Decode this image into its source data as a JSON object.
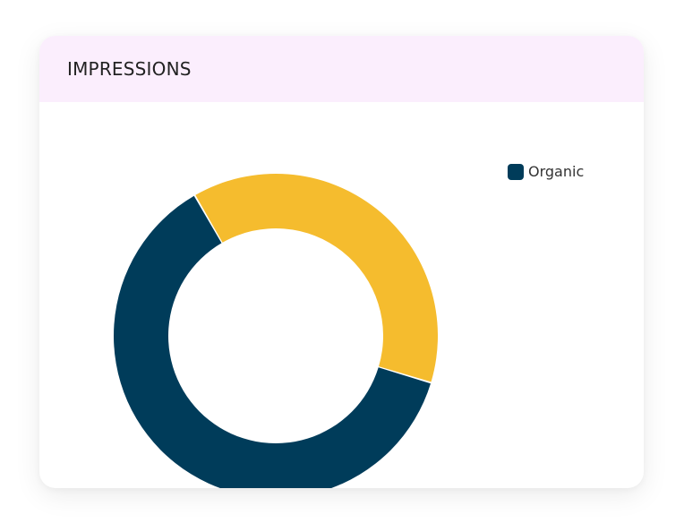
{
  "card": {
    "title": "IMPRESSIONS"
  },
  "colors": {
    "header_bg": "#fbeefd",
    "organic": "#003c5a",
    "other": "#f5bc2e"
  },
  "chart_data": {
    "type": "pie",
    "donut": true,
    "title": "IMPRESSIONS",
    "slices": [
      {
        "label": "Organic",
        "value": 62,
        "color": "#003c5a"
      },
      {
        "label": "",
        "value": 38,
        "color": "#f5bc2e"
      }
    ],
    "legend": {
      "placement": "top-right",
      "entries": [
        {
          "label": "Organic",
          "color": "#003c5a"
        }
      ]
    }
  }
}
